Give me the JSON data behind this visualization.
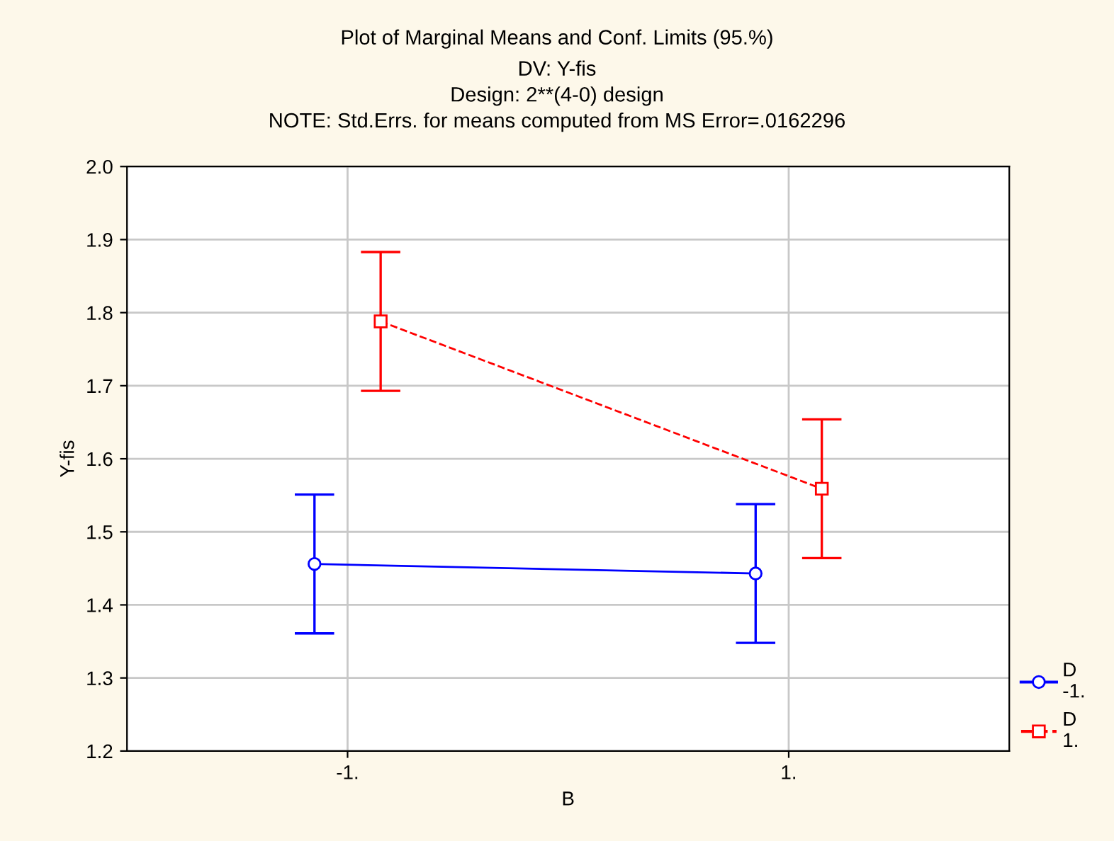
{
  "chart_data": {
    "type": "line",
    "title": "Plot of Marginal Means and Conf. Limits (95.%)",
    "subtitle": "DV: Y-fis\nDesign: 2**(4-0) design\nNOTE: Std.Errs. for means computed from MS Error=.0162296",
    "xlabel": "B",
    "ylabel": "Y-fis",
    "categories": [
      "-1.",
      "1."
    ],
    "series": [
      {
        "name": "D\n-1.",
        "color": "#0000ff",
        "values": [
          1.456,
          1.443
        ],
        "errors": [
          0.095,
          0.095
        ],
        "marker": "circle",
        "line_style": "solid"
      },
      {
        "name": "D\n1.",
        "color": "#ff0000",
        "values": [
          1.788,
          1.559
        ],
        "errors": [
          0.095,
          0.095
        ],
        "marker": "square",
        "line_style": "dashed"
      }
    ],
    "ylim": [
      1.2,
      2.0
    ],
    "yticks": [
      1.2,
      1.3,
      1.4,
      1.5,
      1.6,
      1.7,
      1.8,
      1.9,
      {
        "value": 2.0,
        "label": "2.0"
      }
    ],
    "grid": true,
    "legend": "bottom right"
  }
}
